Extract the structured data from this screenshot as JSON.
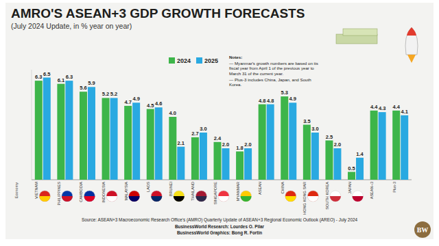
{
  "chart_data": {
    "type": "bar",
    "title": "AMRO'S ASEAN+3 GDP GROWTH FORECASTS",
    "subtitle": "(July 2024 Update, in % year on year)",
    "x_label": "Economy",
    "notes": [
      "Notes:",
      "— Myanmar's growth numbers are based on its fiscal year from April 1 of the previous year to March 31 of the current year.",
      "— Plus-3 includes China, Japan, and South Korea."
    ],
    "source": "Source: ASEAN+3 Macroeconomic Research Office's (AMRO) Quarterly Update of ASEAN+3 Regional Economic Outlook (AREO) - July 2024",
    "credits": [
      "BusinessWorld Research: Lourdes O. Pilar",
      "BusinessWorld Graphics: Bong R. Fortin"
    ],
    "logo": "BW",
    "categories": [
      "VIETNAM",
      "PHILIPPINES",
      "CAMBODIA",
      "INDONESIA",
      "MALAYSIA",
      "LAOS",
      "BRUNEI",
      "THAILAND",
      "SINGAPORE",
      "MYANMAR",
      "ASEAN",
      "CHINA",
      "HONG KONG SAR",
      "SOUTH KOREA",
      "JAPAN",
      "ASEAN+3",
      "Plus-3"
    ],
    "series": [
      {
        "name": "2024",
        "color": "#3db54a",
        "values": [
          6.3,
          6.1,
          5.6,
          5.2,
          4.7,
          4.5,
          4.0,
          2.7,
          2.4,
          1.8,
          4.8,
          5.3,
          3.5,
          2.5,
          0.5,
          4.4,
          4.4
        ],
        "value_labels": [
          "6.3",
          "6.1",
          "5.6",
          "5.2",
          "4.7",
          "4.5",
          "4.0",
          "2.7",
          "2.4",
          "1.8",
          "4.8",
          "5.3",
          "3.5",
          "2.5",
          "0.5",
          "4.4",
          "4.4"
        ]
      },
      {
        "name": "2025",
        "color": "#29a9e1",
        "values": [
          6.5,
          6.3,
          5.9,
          5.2,
          4.9,
          4.6,
          2.1,
          3.0,
          2.0,
          2.0,
          4.8,
          4.9,
          3.0,
          2.0,
          1.4,
          4.3,
          4.1
        ],
        "value_labels": [
          "6.5",
          "6.3",
          "5.9",
          "5.2",
          "4.9",
          "4.6",
          "2.1",
          "3.0",
          "2.0",
          "2.0",
          "4.8",
          "4.9",
          "3.0",
          "2.0",
          "1.4",
          "4.3",
          "4.1"
        ]
      }
    ],
    "ylim": [
      0,
      7
    ],
    "yticks": [],
    "grid": false,
    "legend": "top",
    "data_labels": true,
    "tick_labels": "x"
  }
}
